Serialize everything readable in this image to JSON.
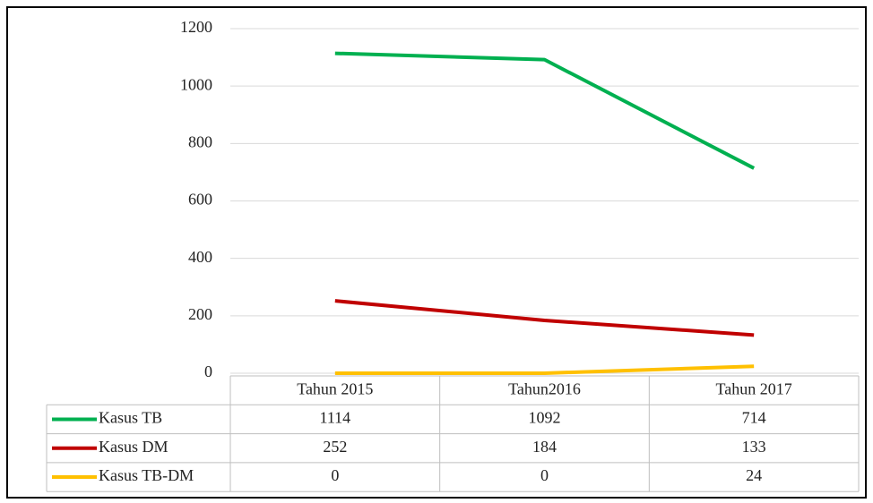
{
  "chart_data": {
    "type": "line",
    "categories": [
      "Tahun 2015",
      "Tahun2016",
      "Tahun 2017"
    ],
    "series": [
      {
        "name": "Kasus TB",
        "color": "#00b050",
        "values": [
          1114,
          1092,
          714
        ]
      },
      {
        "name": "Kasus DM",
        "color": "#c00000",
        "values": [
          252,
          184,
          133
        ]
      },
      {
        "name": "Kasus TB-DM",
        "color": "#ffc000",
        "values": [
          0,
          0,
          24
        ]
      }
    ],
    "ylim": [
      0,
      1200
    ],
    "yticks": [
      0,
      200,
      400,
      600,
      800,
      1000,
      1200
    ],
    "grid": true,
    "data_table": true
  }
}
